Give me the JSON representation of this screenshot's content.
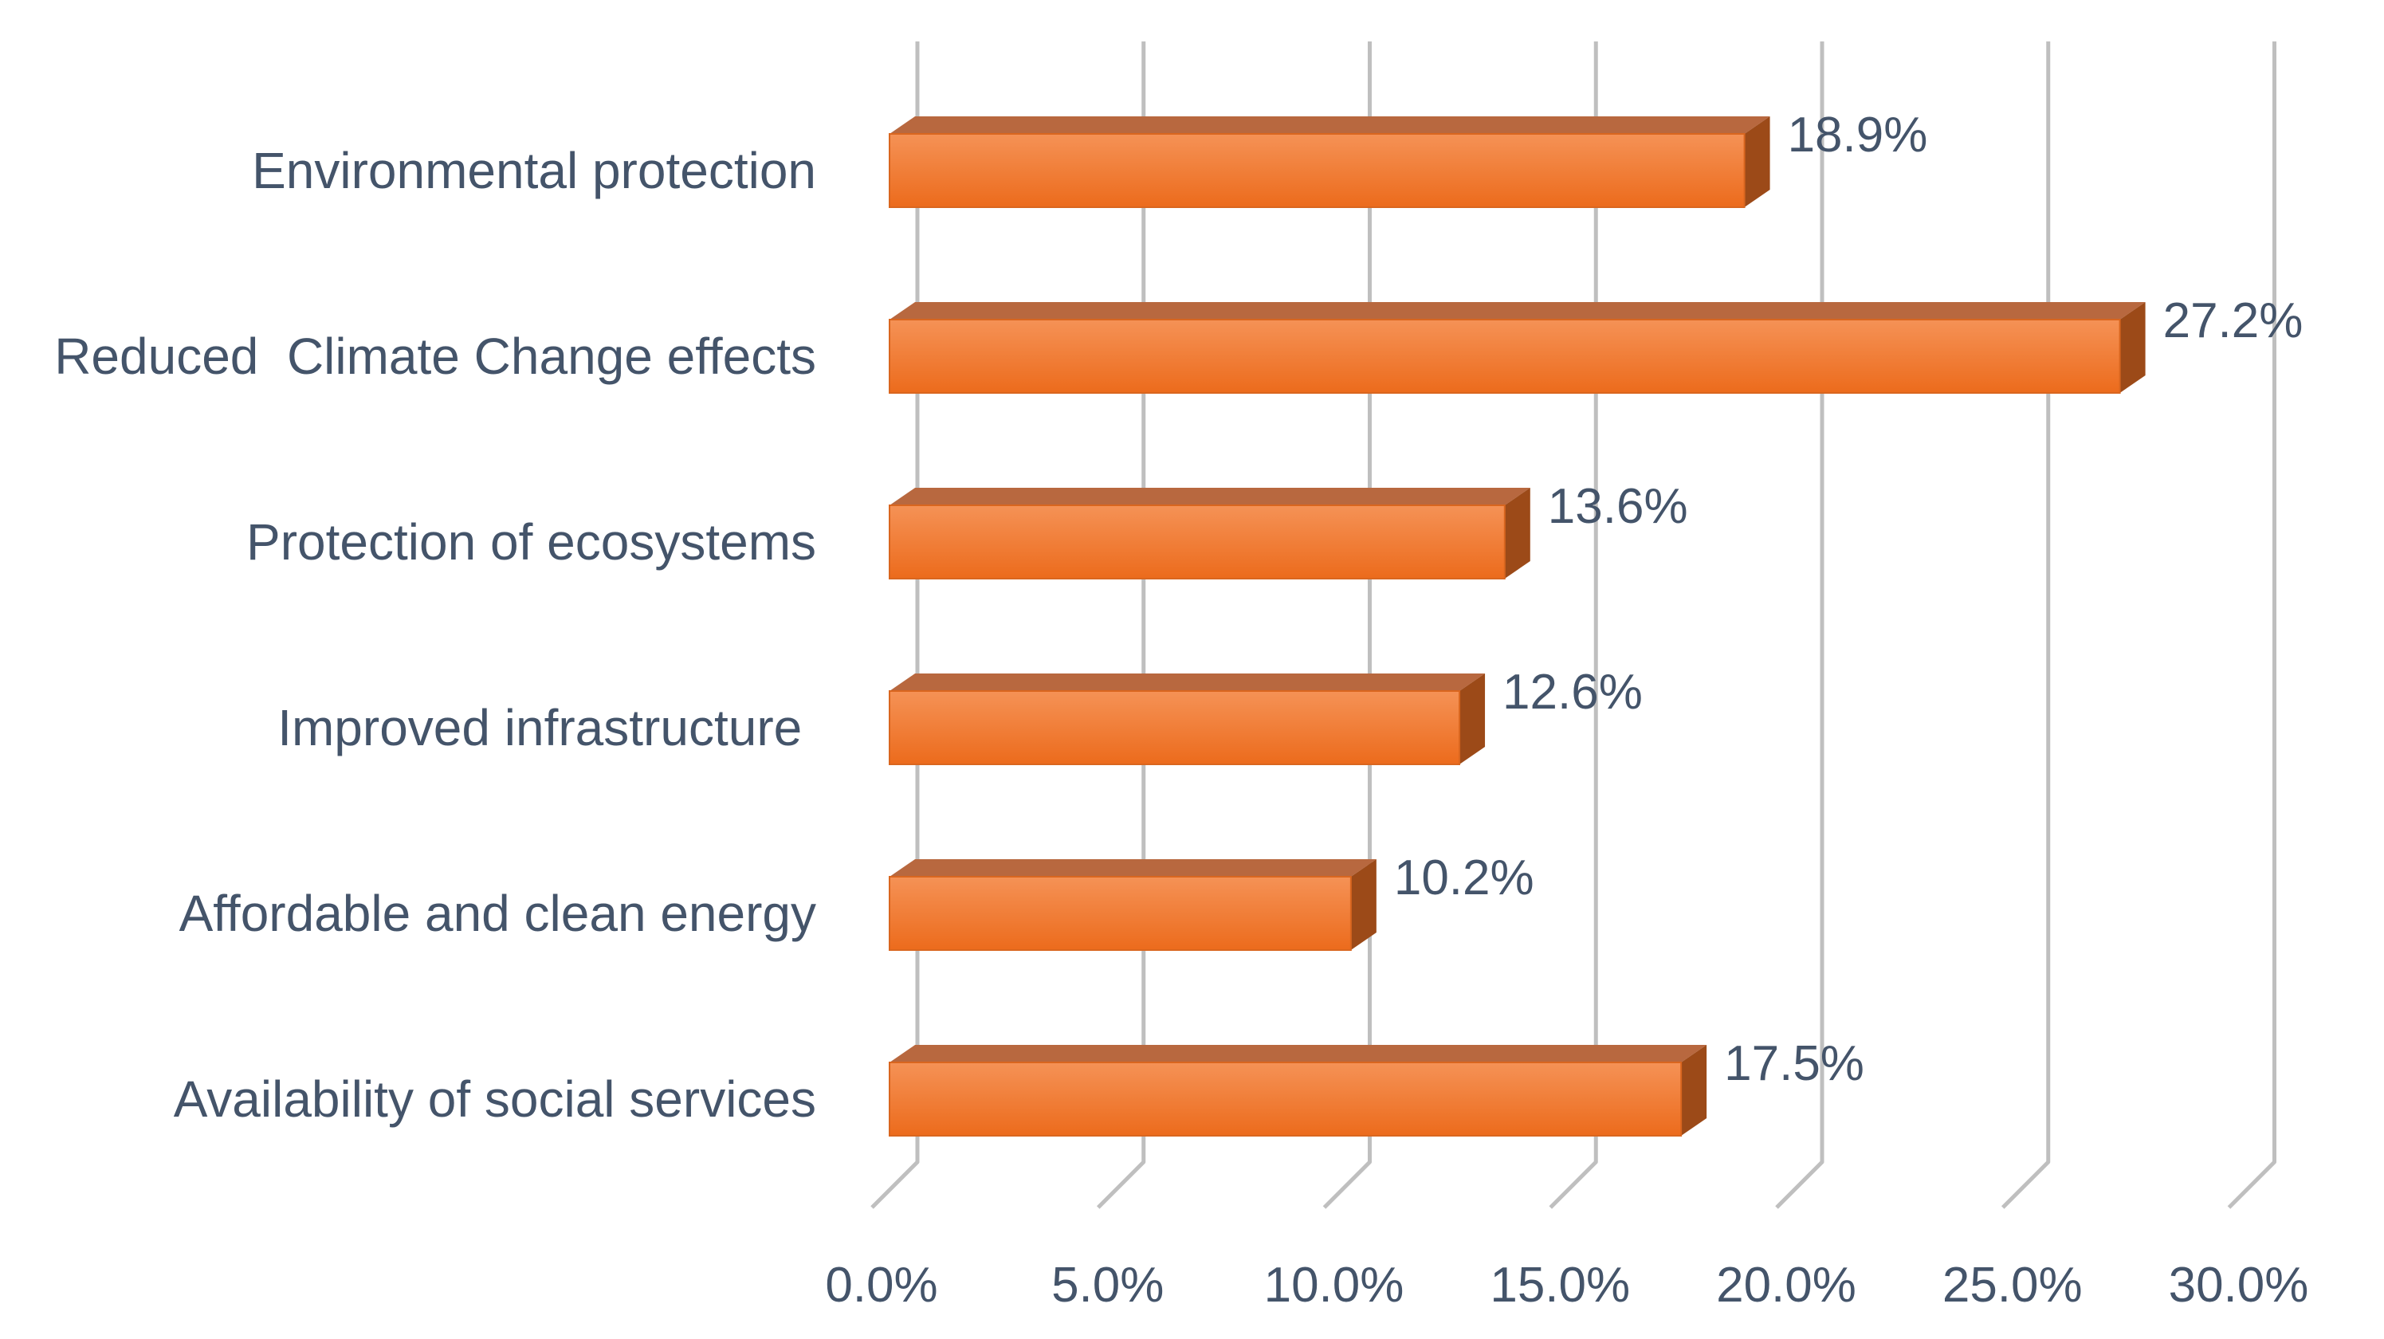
{
  "chart_data": {
    "type": "bar",
    "orientation": "horizontal",
    "style": "3d",
    "categories": [
      "Environmental protection",
      "Reduced  Climate Change effects",
      "Protection of ecosystems",
      "Improved infrastructure ",
      "Affordable and clean energy",
      "Availability of social services"
    ],
    "values": [
      18.9,
      27.2,
      13.6,
      12.6,
      10.2,
      17.5
    ],
    "value_labels": [
      "18.9%",
      "27.2%",
      "13.6%",
      "12.6%",
      "10.2%",
      "17.5%"
    ],
    "x_ticks": [
      "0.0%",
      "5.0%",
      "10.0%",
      "15.0%",
      "20.0%",
      "25.0%",
      "30.0%"
    ],
    "xlim": [
      0,
      30
    ],
    "title": "",
    "xlabel": "",
    "ylabel": "",
    "grid": true,
    "colors": {
      "bar_front": "#f07a2a",
      "bar_front_light": "#f59256",
      "bar_top": "#b8683f",
      "bar_side": "#9c4a18",
      "gridline": "#bfbfbf",
      "text": "#44546a"
    }
  }
}
